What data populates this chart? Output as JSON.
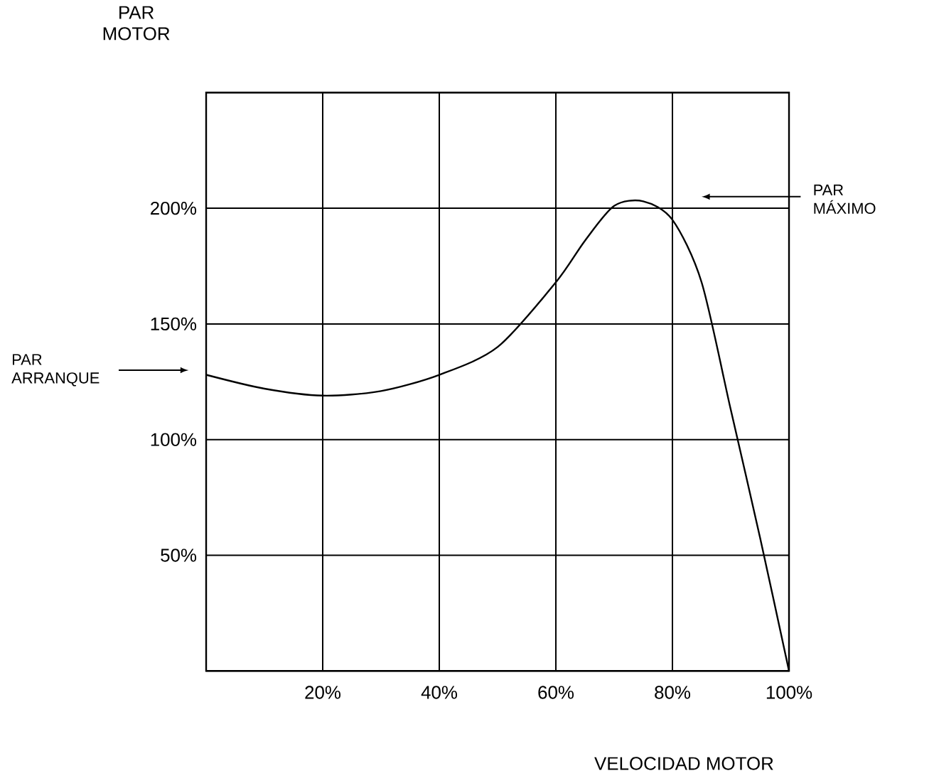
{
  "chart_data": {
    "type": "line",
    "xlabel": "VELOCIDAD MOTOR",
    "ylabel": "PAR MOTOR",
    "x": [
      0,
      10,
      20,
      30,
      40,
      50,
      60,
      65,
      70,
      75,
      80,
      85,
      90,
      95,
      100
    ],
    "series": [
      {
        "color": "#000000",
        "values": [
          128,
          122,
          119,
          121,
          128,
          140,
          168,
          186,
          201,
          203,
          195,
          168,
          113,
          58,
          0
        ]
      }
    ],
    "xlim": [
      0,
      100
    ],
    "ylim": [
      0,
      250
    ],
    "xticks": [
      {
        "value": 0,
        "label": null
      },
      {
        "value": 20,
        "label": "20%"
      },
      {
        "value": 40,
        "label": "40%"
      },
      {
        "value": 60,
        "label": "60%"
      },
      {
        "value": 80,
        "label": "80%"
      },
      {
        "value": 100,
        "label": "100%"
      }
    ],
    "yticks": [
      {
        "value": 0,
        "label": null
      },
      {
        "value": 50,
        "label": "50%"
      },
      {
        "value": 100,
        "label": "100%"
      },
      {
        "value": 150,
        "label": "150%"
      },
      {
        "value": 200,
        "label": "200%"
      },
      {
        "value": 250,
        "label": null
      }
    ],
    "grid": true,
    "annotations": [
      "PAR ARRANQUE",
      "PAR MÁXIMO"
    ]
  }
}
